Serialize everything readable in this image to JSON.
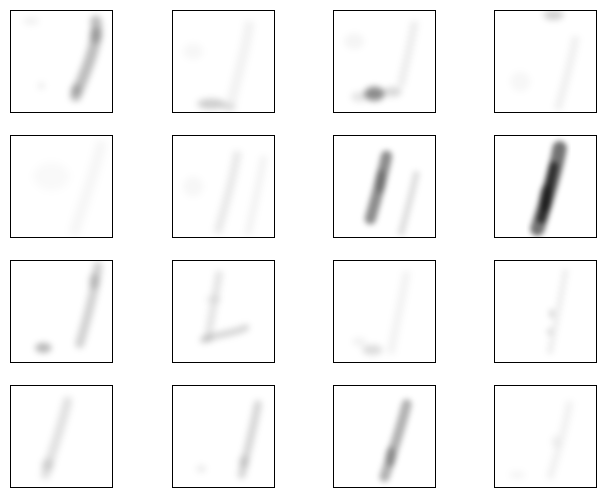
{
  "figure": {
    "rows": 4,
    "cols": 4,
    "panel_count": 16,
    "colormap": "gray_r",
    "background": "#ffffff",
    "frame_color": "#000000",
    "tick_labels": "none"
  }
}
